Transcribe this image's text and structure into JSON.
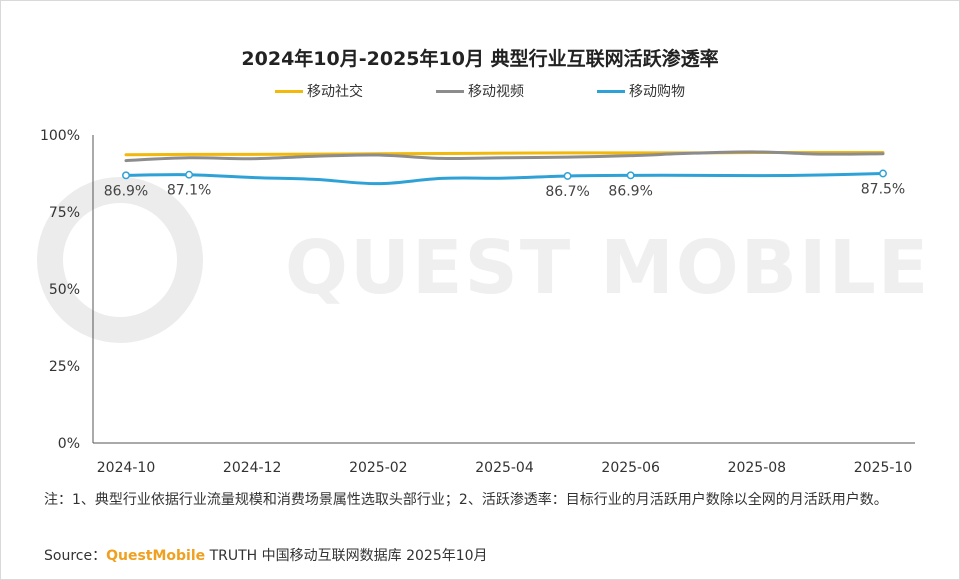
{
  "chart_data": {
    "type": "line",
    "title": "2024年10月-2025年10月 典型行业互联网活跃渗透率",
    "categories": [
      "2024-10",
      "2024-11",
      "2024-12",
      "2025-01",
      "2025-02",
      "2025-03",
      "2025-04",
      "2025-05",
      "2025-06",
      "2025-07",
      "2025-08",
      "2025-09",
      "2025-10"
    ],
    "x_tick_labels": [
      "2024-10",
      "2024-12",
      "2025-02",
      "2025-04",
      "2025-06",
      "2025-08",
      "2025-10"
    ],
    "y_tick_labels": [
      "0%",
      "25%",
      "50%",
      "75%",
      "100%"
    ],
    "ylim": [
      0,
      100
    ],
    "series": [
      {
        "name": "移动社交",
        "color": "#f2b80c",
        "values": [
          93.6,
          93.7,
          93.7,
          93.8,
          93.9,
          94.0,
          94.1,
          94.2,
          94.2,
          94.2,
          94.3,
          94.3,
          94.3
        ]
      },
      {
        "name": "移动视频",
        "color": "#8c8c8c",
        "values": [
          91.7,
          92.6,
          92.3,
          93.1,
          93.5,
          92.4,
          92.6,
          92.8,
          93.3,
          94.1,
          94.5,
          93.8,
          93.9
        ]
      },
      {
        "name": "移动购物",
        "color": "#2ea1d6",
        "values": [
          86.9,
          87.1,
          86.2,
          85.6,
          84.2,
          85.9,
          86.0,
          86.7,
          86.9,
          86.9,
          86.8,
          87.0,
          87.5
        ]
      }
    ],
    "data_labels": [
      {
        "series": 2,
        "index": 0,
        "text": "86.9%"
      },
      {
        "series": 2,
        "index": 1,
        "text": "87.1%"
      },
      {
        "series": 2,
        "index": 7,
        "text": "86.7%"
      },
      {
        "series": 2,
        "index": 8,
        "text": "86.9%"
      },
      {
        "series": 2,
        "index": 12,
        "text": "87.5%"
      }
    ]
  },
  "watermark": "QUEST MOBILE",
  "note": "注：1、典型行业依据行业流量规模和消费场景属性选取头部行业；2、活跃渗透率：目标行业的月活跃用户数除以全网的月活跃用户数。",
  "source": {
    "prefix": "Source：",
    "brand": "QuestMobile",
    "rest": " TRUTH 中国移动互联网数据库 2025年10月"
  }
}
